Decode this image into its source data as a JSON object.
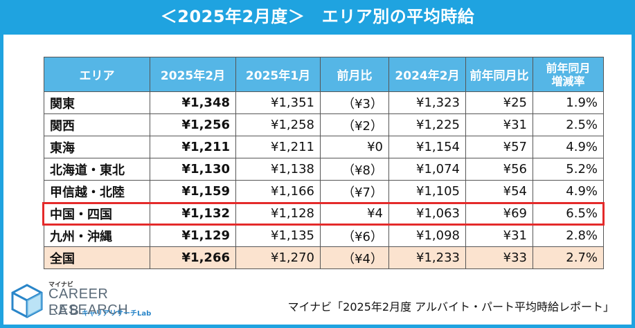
{
  "title": "＜2025年2月度＞　エリア別の平均時給",
  "colors": {
    "accent": "#1fa3e0",
    "header_bg": "#55b6e6",
    "negative": "#e32222",
    "highlight_border": "#e42a2a",
    "national_row_bg": "#fbe3cf"
  },
  "chart_data": {
    "type": "table",
    "columns": [
      "エリア",
      "2025年2月",
      "2025年1月",
      "前月比",
      "2024年2月",
      "前年同月比",
      "前年同月\n増減率"
    ],
    "rows": [
      {
        "area": "関東",
        "feb2025": "¥1,348",
        "jan2025": "¥1,351",
        "mom": "（¥3）",
        "mom_negative": true,
        "feb2024": "¥1,323",
        "yoy": "¥25",
        "yoy_rate": "1.9%"
      },
      {
        "area": "関西",
        "feb2025": "¥1,256",
        "jan2025": "¥1,258",
        "mom": "（¥2）",
        "mom_negative": true,
        "feb2024": "¥1,225",
        "yoy": "¥31",
        "yoy_rate": "2.5%"
      },
      {
        "area": "東海",
        "feb2025": "¥1,211",
        "jan2025": "¥1,211",
        "mom": "¥0",
        "mom_negative": false,
        "feb2024": "¥1,154",
        "yoy": "¥57",
        "yoy_rate": "4.9%"
      },
      {
        "area": "北海道・東北",
        "feb2025": "¥1,130",
        "jan2025": "¥1,138",
        "mom": "（¥8）",
        "mom_negative": true,
        "feb2024": "¥1,074",
        "yoy": "¥56",
        "yoy_rate": "5.2%"
      },
      {
        "area": "甲信越・北陸",
        "feb2025": "¥1,159",
        "jan2025": "¥1,166",
        "mom": "（¥7）",
        "mom_negative": true,
        "feb2024": "¥1,105",
        "yoy": "¥54",
        "yoy_rate": "4.9%"
      },
      {
        "area": "中国・四国",
        "feb2025": "¥1,132",
        "jan2025": "¥1,128",
        "mom": "¥4",
        "mom_negative": false,
        "feb2024": "¥1,063",
        "yoy": "¥69",
        "yoy_rate": "6.5%",
        "highlighted": true
      },
      {
        "area": "九州・沖縄",
        "feb2025": "¥1,129",
        "jan2025": "¥1,135",
        "mom": "（¥6）",
        "mom_negative": true,
        "feb2024": "¥1,098",
        "yoy": "¥31",
        "yoy_rate": "2.8%"
      },
      {
        "area": "全国",
        "feb2025": "¥1,266",
        "jan2025": "¥1,270",
        "mom": "（¥4）",
        "mom_negative": true,
        "feb2024": "¥1,233",
        "yoy": "¥33",
        "yoy_rate": "2.7%",
        "national": true
      }
    ]
  },
  "logo": {
    "brand": "マイナビ",
    "line1": "CAREER RESEARCH",
    "line2": "LAB",
    "line2_sub": "キャリアリサーチLab",
    "icon": "cube-logo-icon"
  },
  "source": "マイナビ「2025年2月度 アルバイト・パート平均時給レポート」"
}
